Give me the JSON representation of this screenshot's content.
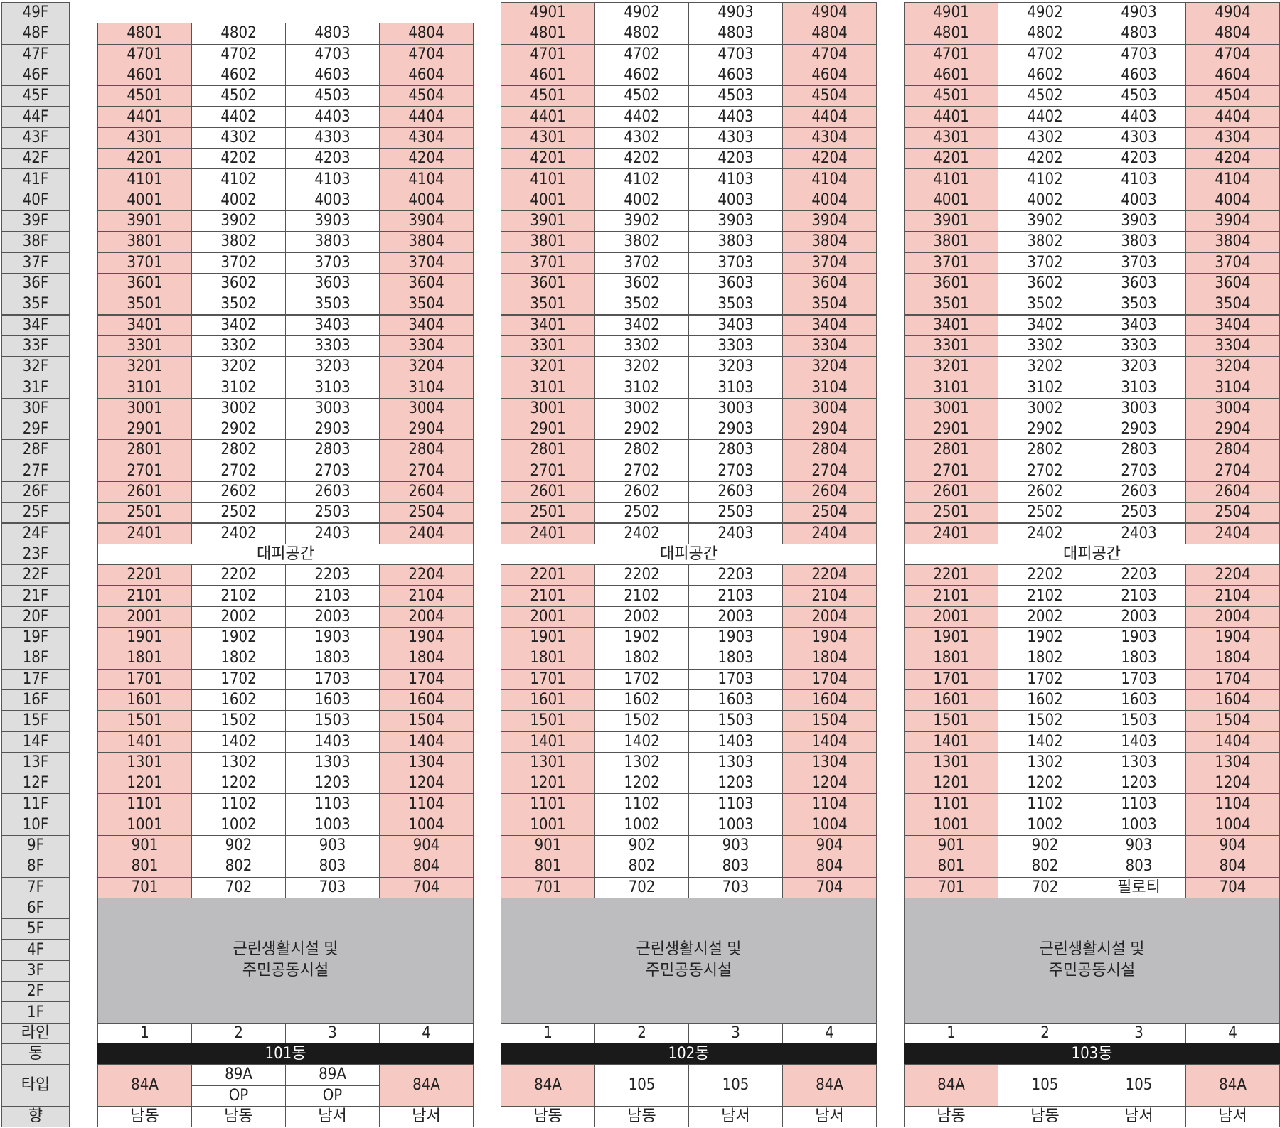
{
  "floor_labels": [
    "49F",
    "48F",
    "47F",
    "46F",
    "45F",
    "44F",
    "43F",
    "42F",
    "41F",
    "40F",
    "39F",
    "38F",
    "37F",
    "36F",
    "35F",
    "34F",
    "33F",
    "32F",
    "31F",
    "30F",
    "29F",
    "28F",
    "27F",
    "26F",
    "25F",
    "24F",
    "23F",
    "22F",
    "21F",
    "20F",
    "19F",
    "18F",
    "17F",
    "16F",
    "15F",
    "14F",
    "13F",
    "12F",
    "11F",
    "10F",
    "9F",
    "8F",
    "7F",
    "6F",
    "5F",
    "4F",
    "3F",
    "2F",
    "1F"
  ],
  "row_labels": {
    "line": "라인",
    "building": "동",
    "type": "타입",
    "direction": "향"
  },
  "colors": {
    "pink": "#f6c9c3",
    "yellow": "#fbd9a7",
    "blue": "#bcd8ef",
    "green": "#b9e1d8",
    "gray": "#bdbdbf",
    "black": "#1a1a1a",
    "floor_label_bg": "#dedede"
  },
  "buildings": [
    {
      "name": "101동",
      "top_floor": 48,
      "line_labels": [
        "1",
        "2",
        "3",
        "4"
      ],
      "refuge_label": "대피공간",
      "amenity_label_1": "근린생활시설 및",
      "amenity_label_2": "주민공동시설",
      "piloti_units": {},
      "piloti_label": "",
      "column_colors_upper": [
        "pink",
        "yellow",
        "yellow",
        "pink"
      ],
      "column_colors_lower": [
        "pink",
        "blue",
        "blue",
        "pink"
      ],
      "types": [
        "84A",
        "89A",
        "89A",
        "84A"
      ],
      "types_sub": [
        "",
        "OP",
        "OP",
        ""
      ],
      "directions": [
        "남동",
        "남동",
        "남서",
        "남서"
      ]
    },
    {
      "name": "102동",
      "top_floor": 49,
      "line_labels": [
        "1",
        "2",
        "3",
        "4"
      ],
      "refuge_label": "대피공간",
      "amenity_label_1": "근린생활시설 및",
      "amenity_label_2": "주민공동시설",
      "piloti_units": {},
      "piloti_label": "",
      "column_colors_upper": [
        "pink",
        "green",
        "green",
        "pink"
      ],
      "column_colors_lower": [
        "pink",
        "green",
        "green",
        "pink"
      ],
      "types": [
        "84A",
        "105",
        "105",
        "84A"
      ],
      "types_sub": [
        "",
        "",
        "",
        ""
      ],
      "directions": [
        "남동",
        "남동",
        "남서",
        "남서"
      ]
    },
    {
      "name": "103동",
      "top_floor": 49,
      "line_labels": [
        "1",
        "2",
        "3",
        "4"
      ],
      "refuge_label": "대피공간",
      "amenity_label_1": "근린생활시설 및",
      "amenity_label_2": "주민공동시설",
      "piloti_units": {
        "703": true
      },
      "piloti_label": "필로티",
      "column_colors_upper": [
        "pink",
        "green",
        "green",
        "pink"
      ],
      "column_colors_lower": [
        "pink",
        "green",
        "green",
        "pink"
      ],
      "types": [
        "84A",
        "105",
        "105",
        "84A"
      ],
      "types_sub": [
        "",
        "",
        "",
        ""
      ],
      "directions": [
        "남동",
        "남동",
        "남서",
        "남서"
      ]
    }
  ]
}
